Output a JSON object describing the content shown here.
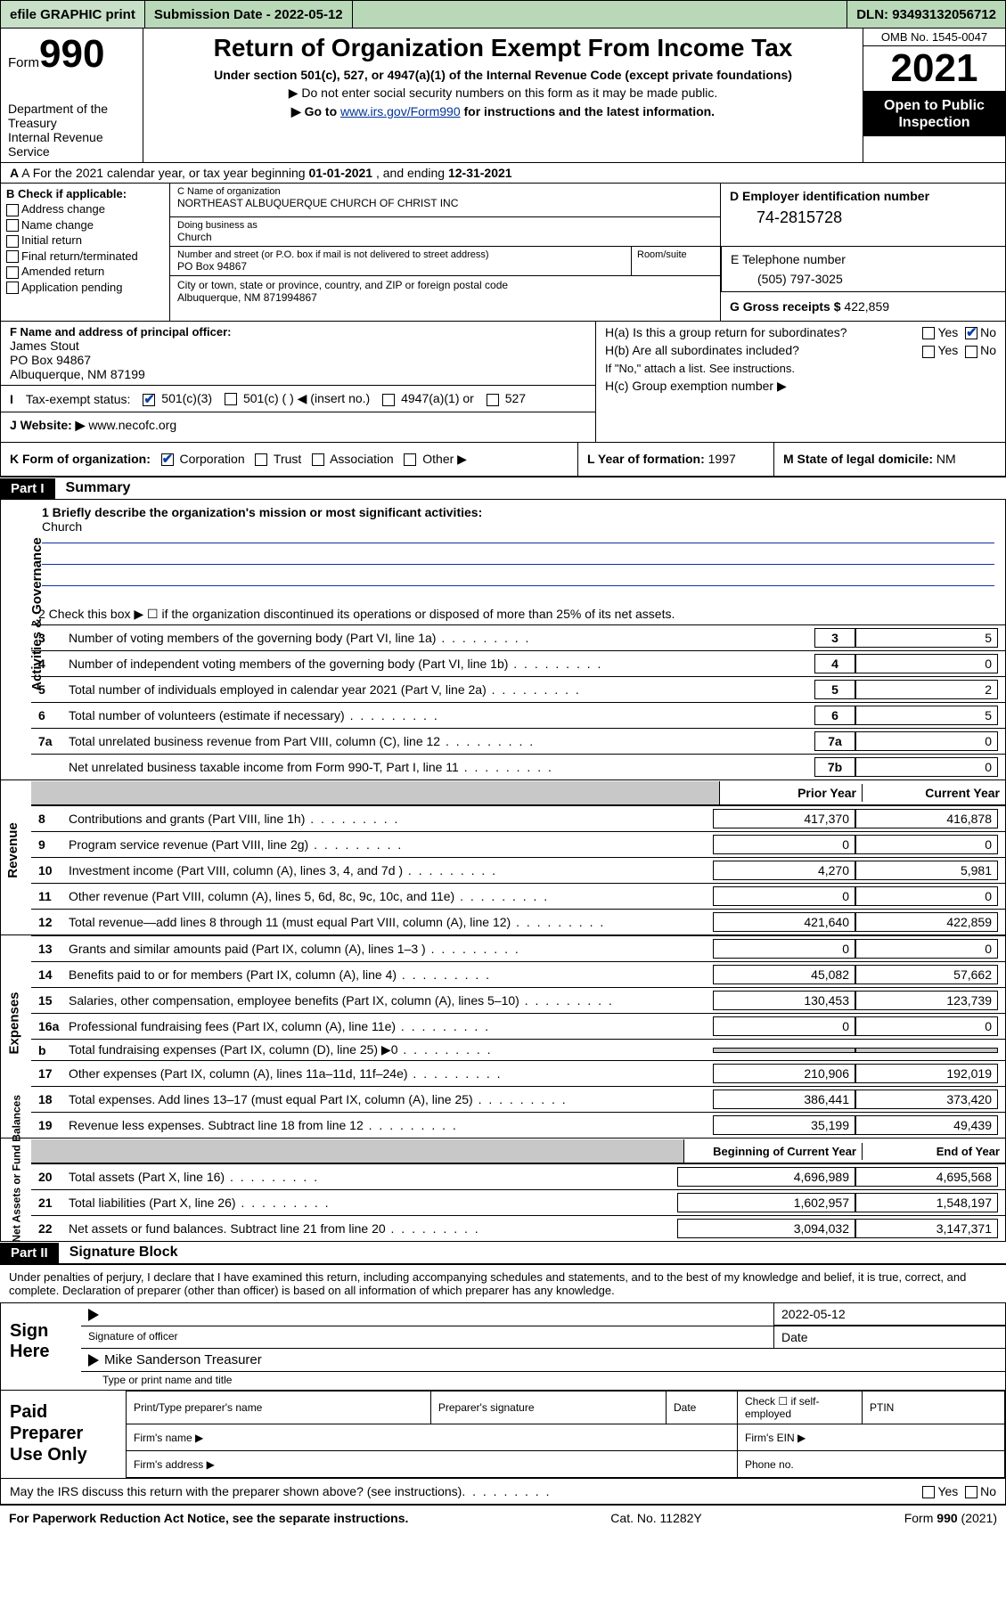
{
  "topbar": {
    "efile": "efile GRAPHIC print",
    "submission_label": "Submission Date",
    "submission_date": "2022-05-12",
    "dln_label": "DLN:",
    "dln": "93493132056712"
  },
  "header": {
    "form_small": "Form",
    "form_big": "990",
    "dept": "Department of the Treasury",
    "irs": "Internal Revenue Service",
    "title": "Return of Organization Exempt From Income Tax",
    "sub1": "Under section 501(c), 527, or 4947(a)(1) of the Internal Revenue Code (except private foundations)",
    "sub2": "▶ Do not enter social security numbers on this form as it may be made public.",
    "sub3a": "▶ Go to ",
    "sub3link": "www.irs.gov/Form990",
    "sub3b": " for instructions and the latest information.",
    "omb": "OMB No. 1545-0047",
    "year": "2021",
    "open": "Open to Public Inspection"
  },
  "rowA": {
    "text_a": "A For the 2021 calendar year, or tax year beginning ",
    "begin": "01-01-2021",
    "mid": " , and ending ",
    "end": "12-31-2021"
  },
  "sectionB": {
    "hdr": "B Check if applicable:",
    "opts": [
      "Address change",
      "Name change",
      "Initial return",
      "Final return/terminated",
      "Amended return",
      "Application pending"
    ]
  },
  "sectionC": {
    "name_lbl": "C Name of organization",
    "name": "NORTHEAST ALBUQUERQUE CHURCH OF CHRIST INC",
    "dba_lbl": "Doing business as",
    "dba": "Church",
    "street_lbl": "Number and street (or P.O. box if mail is not delivered to street address)",
    "room_lbl": "Room/suite",
    "street": "PO Box 94867",
    "city_lbl": "City or town, state or province, country, and ZIP or foreign postal code",
    "city": "Albuquerque, NM  871994867"
  },
  "sectionD": {
    "lbl": "D Employer identification number",
    "val": "74-2815728"
  },
  "sectionE": {
    "lbl": "E Telephone number",
    "val": "(505) 797-3025"
  },
  "sectionG": {
    "lbl": "G Gross receipts $",
    "val": "422,859"
  },
  "sectionF": {
    "lbl": "F Name and address of principal officer:",
    "name": "James Stout",
    "street": "PO Box 94867",
    "city": "Albuquerque, NM  87199"
  },
  "sectionH": {
    "ha": "H(a)  Is this a group return for subordinates?",
    "hb": "H(b)  Are all subordinates included?",
    "hnote": "If \"No,\" attach a list. See instructions.",
    "hc": "H(c)  Group exemption number ▶",
    "yes": "Yes",
    "no": "No"
  },
  "rowI": {
    "lbl": "Tax-exempt status:",
    "o1": "501(c)(3)",
    "o2": "501(c) (  ) ◀ (insert no.)",
    "o3": "4947(a)(1) or",
    "o4": "527"
  },
  "rowJ": {
    "lbl": "J   Website: ▶",
    "val": "www.necofc.org"
  },
  "rowK": {
    "lbl": "K Form of organization:",
    "opts": [
      "Corporation",
      "Trust",
      "Association",
      "Other ▶"
    ],
    "l_lbl": "L Year of formation:",
    "l_val": "1997",
    "m_lbl": "M State of legal domicile:",
    "m_val": "NM"
  },
  "part1": {
    "hdr": "Part I",
    "title": "Summary",
    "mission_lbl": "1   Briefly describe the organization's mission or most significant activities:",
    "mission": "Church",
    "line2": "2   Check this box ▶ ☐  if the organization discontinued its operations or disposed of more than 25% of its net assets.",
    "vlabel_ag": "Activities & Governance",
    "vlabel_rev": "Revenue",
    "vlabel_exp": "Expenses",
    "vlabel_na": "Net Assets or Fund Balances",
    "lines_ag": [
      {
        "n": "3",
        "t": "Number of voting members of the governing body (Part VI, line 1a)",
        "box": "3",
        "v": "5"
      },
      {
        "n": "4",
        "t": "Number of independent voting members of the governing body (Part VI, line 1b)",
        "box": "4",
        "v": "0"
      },
      {
        "n": "5",
        "t": "Total number of individuals employed in calendar year 2021 (Part V, line 2a)",
        "box": "5",
        "v": "2"
      },
      {
        "n": "6",
        "t": "Total number of volunteers (estimate if necessary)",
        "box": "6",
        "v": "5"
      },
      {
        "n": "7a",
        "t": "Total unrelated business revenue from Part VIII, column (C), line 12",
        "box": "7a",
        "v": "0"
      },
      {
        "n": "",
        "t": "Net unrelated business taxable income from Form 990-T, Part I, line 11",
        "box": "7b",
        "v": "0"
      }
    ],
    "col_prior": "Prior Year",
    "col_curr": "Current Year",
    "lines_rev": [
      {
        "n": "8",
        "t": "Contributions and grants (Part VIII, line 1h)",
        "p": "417,370",
        "c": "416,878"
      },
      {
        "n": "9",
        "t": "Program service revenue (Part VIII, line 2g)",
        "p": "0",
        "c": "0"
      },
      {
        "n": "10",
        "t": "Investment income (Part VIII, column (A), lines 3, 4, and 7d )",
        "p": "4,270",
        "c": "5,981"
      },
      {
        "n": "11",
        "t": "Other revenue (Part VIII, column (A), lines 5, 6d, 8c, 9c, 10c, and 11e)",
        "p": "0",
        "c": "0"
      },
      {
        "n": "12",
        "t": "Total revenue—add lines 8 through 11 (must equal Part VIII, column (A), line 12)",
        "p": "421,640",
        "c": "422,859"
      }
    ],
    "lines_exp": [
      {
        "n": "13",
        "t": "Grants and similar amounts paid (Part IX, column (A), lines 1–3 )",
        "p": "0",
        "c": "0"
      },
      {
        "n": "14",
        "t": "Benefits paid to or for members (Part IX, column (A), line 4)",
        "p": "45,082",
        "c": "57,662"
      },
      {
        "n": "15",
        "t": "Salaries, other compensation, employee benefits (Part IX, column (A), lines 5–10)",
        "p": "130,453",
        "c": "123,739"
      },
      {
        "n": "16a",
        "t": "Professional fundraising fees (Part IX, column (A), line 11e)",
        "p": "0",
        "c": "0"
      },
      {
        "n": "b",
        "t": "Total fundraising expenses (Part IX, column (D), line 25) ▶0",
        "p": "",
        "c": "",
        "grey": true
      },
      {
        "n": "17",
        "t": "Other expenses (Part IX, column (A), lines 11a–11d, 11f–24e)",
        "p": "210,906",
        "c": "192,019"
      },
      {
        "n": "18",
        "t": "Total expenses. Add lines 13–17 (must equal Part IX, column (A), line 25)",
        "p": "386,441",
        "c": "373,420"
      },
      {
        "n": "19",
        "t": "Revenue less expenses. Subtract line 18 from line 12",
        "p": "35,199",
        "c": "49,439"
      }
    ],
    "col_boy": "Beginning of Current Year",
    "col_eoy": "End of Year",
    "lines_na": [
      {
        "n": "20",
        "t": "Total assets (Part X, line 16)",
        "p": "4,696,989",
        "c": "4,695,568"
      },
      {
        "n": "21",
        "t": "Total liabilities (Part X, line 26)",
        "p": "1,602,957",
        "c": "1,548,197"
      },
      {
        "n": "22",
        "t": "Net assets or fund balances. Subtract line 21 from line 20",
        "p": "3,094,032",
        "c": "3,147,371"
      }
    ]
  },
  "part2": {
    "hdr": "Part II",
    "title": "Signature Block",
    "note": "Under penalties of perjury, I declare that I have examined this return, including accompanying schedules and statements, and to the best of my knowledge and belief, it is true, correct, and complete. Declaration of preparer (other than officer) is based on all information of which preparer has any knowledge.",
    "sign_here": "Sign Here",
    "sig_officer": "Signature of officer",
    "date_lbl": "Date",
    "sig_date": "2022-05-12",
    "name_title": "Mike Sanderson Treasurer",
    "name_lbl": "Type or print name and title",
    "paid": "Paid Preparer Use Only",
    "prep_cols": [
      "Print/Type preparer's name",
      "Preparer's signature",
      "Date",
      "Check ☐ if self-employed",
      "PTIN"
    ],
    "firm_name": "Firm's name  ▶",
    "firm_ein": "Firm's EIN ▶",
    "firm_addr": "Firm's address ▶",
    "phone": "Phone no.",
    "discuss": "May the IRS discuss this return with the preparer shown above? (see instructions)",
    "yes": "Yes",
    "no": "No"
  },
  "footer": {
    "l": "For Paperwork Reduction Act Notice, see the separate instructions.",
    "m": "Cat. No. 11282Y",
    "r": "Form 990 (2021)"
  }
}
